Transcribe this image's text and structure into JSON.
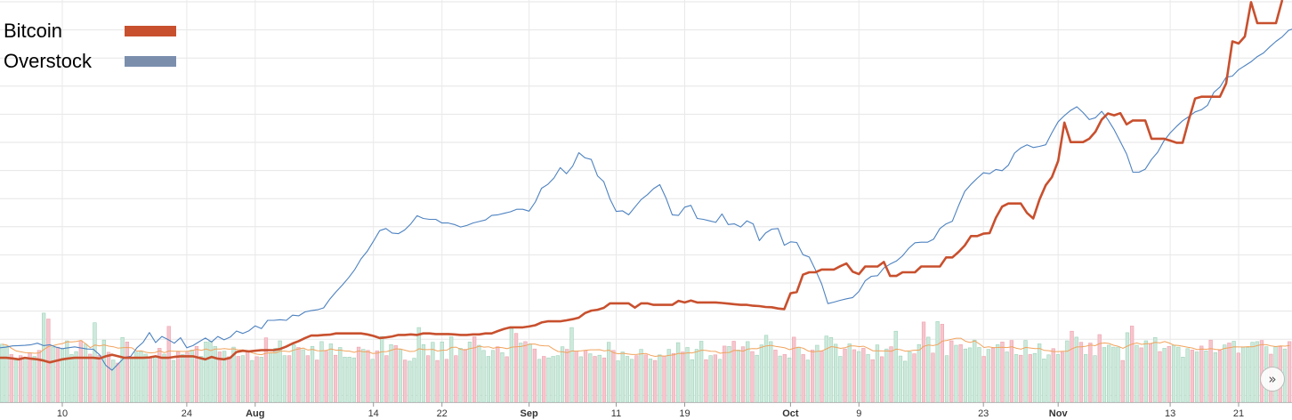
{
  "chart_data": {
    "type": "line",
    "title": "",
    "xlabel": "",
    "ylabel": "",
    "x_ticks": [
      {
        "label": "10",
        "index": 10,
        "month": false
      },
      {
        "label": "24",
        "index": 30,
        "month": false
      },
      {
        "label": "Aug",
        "index": 41,
        "month": true
      },
      {
        "label": "14",
        "index": 60,
        "month": false
      },
      {
        "label": "22",
        "index": 71,
        "month": false
      },
      {
        "label": "Sep",
        "index": 85,
        "month": true
      },
      {
        "label": "11",
        "index": 99,
        "month": false
      },
      {
        "label": "19",
        "index": 110,
        "month": false
      },
      {
        "label": "Oct",
        "index": 127,
        "month": true
      },
      {
        "label": "9",
        "index": 138,
        "month": false
      },
      {
        "label": "23",
        "index": 158,
        "month": false
      },
      {
        "label": "Nov",
        "index": 170,
        "month": true
      },
      {
        "label": "13",
        "index": 188,
        "month": false
      },
      {
        "label": "21",
        "index": 199,
        "month": false
      }
    ],
    "legend": {
      "position": "top-left"
    },
    "grid": true,
    "series": [
      {
        "name": "Bitcoin",
        "color": "#c8502e",
        "values": [
          14.6,
          14.6,
          14.4,
          14.1,
          14.6,
          14.3,
          14.1,
          13.7,
          13.1,
          13.6,
          14.1,
          14.4,
          14.6,
          14.6,
          14.6,
          14.6,
          14.4,
          15.1,
          15.6,
          15.1,
          14.6,
          14.6,
          14.6,
          14.6,
          14.7,
          15.1,
          14.6,
          14.6,
          14.9,
          15.1,
          15.1,
          15.1,
          14.6,
          14.1,
          14.9,
          14.3,
          14.1,
          14.6,
          16.5,
          16.9,
          16.7,
          16.9,
          17.1,
          17.1,
          17.1,
          17.5,
          18.3,
          19.3,
          20.1,
          21.1,
          21.9,
          21.9,
          22.1,
          22.2,
          22.6,
          22.6,
          22.6,
          22.6,
          22.6,
          22.3,
          21.8,
          21.1,
          21.3,
          21.6,
          22.1,
          22.1,
          22.3,
          22.1,
          22.6,
          22.6,
          22.4,
          22.4,
          22.4,
          22.3,
          22.1,
          22.1,
          22.3,
          22.3,
          22.6,
          22.6,
          23.4,
          24.1,
          24.6,
          24.6,
          24.6,
          24.9,
          25.3,
          26.2,
          26.6,
          26.6,
          26.6,
          26.9,
          27.3,
          27.8,
          29.3,
          30.1,
          30.4,
          31.0,
          32.5,
          32.5,
          32.5,
          32.5,
          31.1,
          32.5,
          32.5,
          32.0,
          32.0,
          32.0,
          32.0,
          33.3,
          32.8,
          33.4,
          32.8,
          32.8,
          32.8,
          32.8,
          32.6,
          32.4,
          32.2,
          32.0,
          32.0,
          31.7,
          31.6,
          31.3,
          31.2,
          30.8,
          30.6,
          35.8,
          36.2,
          41.9,
          42.7,
          42.7,
          43.6,
          43.6,
          43.6,
          44.7,
          45.6,
          42.9,
          42.1,
          44.6,
          44.6,
          44.6,
          46.1,
          41.5,
          41.5,
          42.7,
          42.7,
          42.7,
          44.6,
          44.6,
          44.6,
          44.6,
          47.6,
          47.6,
          49.4,
          51.5,
          54.6,
          54.6,
          55.4,
          55.6,
          60.6,
          64.3,
          65.3,
          65.3,
          65.3,
          62.2,
          60.4,
          66.6,
          71.3,
          74.0,
          79.3,
          91.9,
          85.5,
          85.5,
          85.5,
          86.6,
          88.9,
          92.9,
          94.9,
          94.3,
          95.0,
          91.3,
          92.6,
          92.6,
          92.6,
          86.6,
          86.6,
          86.6,
          86.0,
          85.3,
          85.3,
          92.9,
          99.8,
          100.4,
          100.4,
          100.4,
          100.4,
          104.8,
          118.6,
          117.9,
          120.2,
          131.5,
          124.6,
          124.6,
          124.6,
          124.6,
          132.2
        ]
      },
      {
        "name": "Overstock",
        "color": "#4d82c0",
        "values": [
          17.9,
          18.1,
          18.5,
          18.6,
          18.7,
          18.9,
          19.4,
          18.6,
          18.9,
          18.1,
          17.6,
          17.9,
          18.2,
          17.8,
          17.5,
          17.4,
          15.6,
          12.1,
          10.5,
          12.6,
          14.7,
          15.1,
          17.9,
          19.7,
          22.9,
          19.6,
          21.6,
          20.6,
          19.4,
          21.2,
          17.9,
          18.6,
          19.9,
          21.1,
          19.8,
          21.6,
          20.5,
          21.4,
          23.4,
          22.6,
          23.5,
          25.1,
          24.2,
          26.9,
          26.9,
          27.1,
          26.9,
          28.6,
          28.4,
          29.7,
          30.1,
          30.4,
          31.0,
          33.9,
          36.3,
          38.5,
          40.9,
          43.6,
          47.1,
          49.6,
          52.9,
          56.4,
          57.1,
          55.6,
          55.4,
          56.6,
          58.6,
          61.3,
          60.4,
          60.1,
          60.1,
          58.9,
          58.9,
          58.4,
          57.6,
          58.1,
          58.9,
          59.4,
          59.9,
          61.4,
          61.6,
          62.1,
          62.6,
          63.4,
          63.4,
          62.8,
          65.8,
          70.3,
          71.6,
          73.7,
          77.1,
          75.1,
          77.6,
          82.0,
          80.3,
          79.8,
          74.4,
          72.5,
          66.8,
          62.7,
          62.9,
          61.6,
          64.1,
          66.6,
          68.2,
          70.2,
          71.5,
          67.1,
          61.6,
          61.4,
          64.1,
          64.7,
          60.4,
          60.1,
          59.6,
          59.1,
          61.9,
          58.4,
          58.6,
          57.6,
          59.6,
          58.6,
          53.1,
          55.6,
          56.9,
          57.1,
          51.6,
          52.7,
          52.5,
          48.5,
          47.7,
          43.5,
          38.9,
          32.4,
          32.9,
          33.5,
          34.0,
          34.4,
          36.4,
          39.9,
          41.4,
          41.6,
          44.1,
          45.4,
          46.4,
          48.1,
          50.6,
          52.4,
          52.6,
          52.6,
          53.6,
          57.1,
          58.6,
          59.5,
          64.6,
          69.3,
          71.6,
          73.6,
          75.4,
          75.1,
          76.5,
          76.1,
          77.9,
          81.9,
          83.6,
          84.6,
          83.7,
          84.1,
          84.6,
          88.6,
          92.2,
          94.2,
          95.9,
          97.1,
          95.2,
          92.9,
          93.5,
          95.6,
          92.9,
          89.6,
          85.6,
          81.6,
          75.6,
          75.6,
          76.6,
          79.8,
          82.2,
          85.9,
          88.5,
          90.6,
          92.5,
          93.9,
          95.4,
          96.1,
          97.6,
          101.8,
          103.6,
          106.8,
          107.2,
          109.3,
          110.6,
          111.9,
          113.6,
          114.8,
          116.8,
          118.6,
          120.1,
          122.2,
          122.9,
          124.7,
          124.7
        ]
      }
    ],
    "volume": {
      "values": [
        15.7,
        15.2,
        12.9,
        11.7,
        12.6,
        12.2,
        13.3,
        12.4,
        14.0,
        24.1,
        22.5,
        14.9,
        14.9,
        14.4,
        16.6,
        12.9,
        13.7,
        16.6,
        15.7,
        13.0,
        21.5,
        12.7,
        16.8,
        13.5,
        11.4,
        10.6,
        17.5,
        16.3,
        12.0,
        13.5,
        13.7,
        13.0,
        12.1,
        12.4,
        14.6,
        13.0,
        20.5,
        11.3,
        13.6,
        12.9,
        13.5,
        14.1,
        15.1,
        12.4,
        16.3,
        16.5,
        15.1,
        13.6,
        13.8,
        12.3,
        14.9,
        12.4,
        12.6,
        13.9,
        11.3,
        12.3,
        12.2,
        17.4,
        13.4,
        14.6,
        16.6,
        12.6,
        12.6,
        15.5,
        14.8,
        14.2,
        12.6,
        15.1,
        11.4,
        16.4,
        13.8,
        15.8,
        12.7,
        14.8,
        12.2,
        12.2,
        12.0,
        14.9,
        14.3,
        14.0,
        11.6,
        13.9,
        17.8,
        12.6,
        15.6,
        15.3,
        14.3,
        11.4,
        11.1,
        11.9,
        20.2,
        15.6,
        12.6,
        16.2,
        11.3,
        16.3,
        11.6,
        17.7,
        12.6,
        14.6,
        14.3,
        16.3,
        17.7,
        15.4,
        14.0,
        12.4,
        14.0,
        15.0,
        13.4,
        12.3,
        19.9,
        18.6,
        16.0,
        16.4,
        15.8,
        14.4,
        11.6,
        12.4,
        12.0,
        12.4,
        12.6,
        15.0,
        14.3,
        20.2,
        13.8,
        12.3,
        14.0,
        13.1,
        12.4,
        12.7,
        12.0,
        16.2,
        14.0,
        11.2,
        13.6,
        12.4,
        11.6,
        12.6,
        14.3,
        12.8,
        11.7,
        11.3,
        12.8,
        12.5,
        14.3,
        13.2,
        16.1,
        13.6,
        14.8,
        11.5,
        14.3,
        16.5,
        11.5,
        12.6,
        12.8,
        11.6,
        15.2,
        15.1,
        16.5,
        14.1,
        15.0,
        16.4,
        13.7,
        12.7,
        15.5,
        18.1,
        16.4,
        14.1,
        12.5,
        12.9,
        12.0,
        17.6,
        14.9,
        12.9,
        11.4,
        14.1,
        15.4,
        13.8,
        17.9,
        17.5,
        15.7,
        12.4,
        14.4,
        15.8,
        14.2,
        13.7,
        14.6,
        12.9,
        11.5,
        15.5,
        12.3,
        14.4,
        15.0,
        19.2,
        12.5,
        11.1,
        13.6,
        13.1,
        15.6,
        21.7,
        17.6,
        13.3,
        21.8,
        21.1,
        12.6,
        16.6,
        15.4,
        15.6,
        14.4,
        14.7,
        16.8,
        14.8,
        12.4,
        14.3,
        14.6,
        15.6,
        16.3,
        13.6,
        16.7,
        12.9,
        12.7,
        16.7,
        12.9,
        13.2,
        15.8,
        11.7,
        12.8,
        14.5,
        12.9,
        13.5,
        16.6,
        19.2,
        17.6,
        16.2,
        12.9,
        16.0,
        12.6,
        18.3,
        14.8,
        15.4,
        14.9,
        14.9,
        11.3,
        18.8,
        20.6,
        15.4,
        14.7,
        16.6,
        15.8,
        17.5,
        13.7,
        14.6,
        15.1,
        15.4,
        14.9,
        12.2,
        14.5,
        14.1,
        13.6,
        15.2,
        13.9,
        16.8,
        13.4,
        14.0,
        15.5,
        16.0,
        16.5,
        13.3,
        15.0,
        14.8,
        16.2,
        16.4,
        16.7,
        15.0,
        13.0,
        15.0,
        15.0,
        14.4,
        16.4
      ],
      "avg_color": "#f1a35d"
    }
  }
}
